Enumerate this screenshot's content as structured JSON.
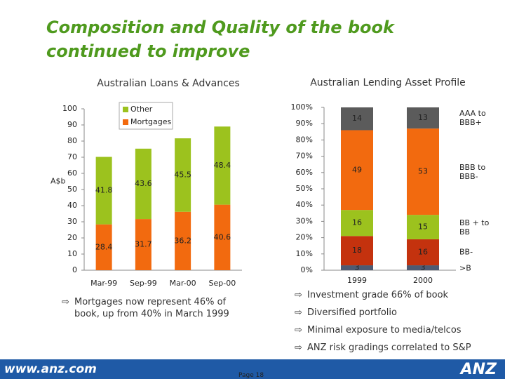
{
  "title": "Composition and Quality of the book continued to improve",
  "chart_data": [
    {
      "type": "bar",
      "stacked": true,
      "title": "Australian Loans & Advances",
      "y_label": "A$b",
      "categories": [
        "Mar-99",
        "Sep-99",
        "Mar-00",
        "Sep-00"
      ],
      "series": [
        {
          "name": "Mortgages",
          "color": "#f26a0f",
          "values": [
            28.4,
            31.7,
            36.2,
            40.6
          ]
        },
        {
          "name": "Other",
          "color": "#9cc21e",
          "values": [
            41.8,
            43.6,
            45.5,
            48.4
          ]
        }
      ],
      "ylim": [
        0,
        100
      ],
      "yticks": [
        0,
        10,
        20,
        30,
        40,
        50,
        60,
        70,
        80,
        90,
        100
      ],
      "legend": "top-left"
    },
    {
      "type": "bar",
      "stacked": true,
      "title": "Australian Lending Asset  Profile",
      "categories": [
        "1999",
        "2000"
      ],
      "series": [
        {
          "name": ">B",
          "color": "#4e5a72",
          "values": [
            3,
            3
          ]
        },
        {
          "name": "BB-",
          "color": "#c4320e",
          "values": [
            18,
            16
          ]
        },
        {
          "name": "BB + to BB",
          "color": "#9cc21e",
          "values": [
            16,
            15
          ]
        },
        {
          "name": "BBB to BBB-",
          "color": "#f26a0f",
          "values": [
            49,
            53
          ]
        },
        {
          "name": "AAA to BBB+",
          "color": "#5b5b5b",
          "values": [
            14,
            13
          ]
        }
      ],
      "ylim": [
        0,
        100
      ],
      "yticks": [
        {
          "value": 0,
          "label": "0%"
        },
        {
          "value": 10,
          "label": "10%"
        },
        {
          "value": 20,
          "label": "20%"
        },
        {
          "value": 30,
          "label": "30%"
        },
        {
          "value": 40,
          "label": "40%"
        },
        {
          "value": 50,
          "label": "50%"
        },
        {
          "value": 60,
          "label": "60%"
        },
        {
          "value": 70,
          "label": "70%"
        },
        {
          "value": 80,
          "label": "80%"
        },
        {
          "value": 90,
          "label": "90%"
        },
        {
          "value": 100,
          "label": "100%"
        }
      ],
      "legend": "right"
    }
  ],
  "left_bullets": [
    "Mortgages now represent 46% of book, up from 40% in March 1999"
  ],
  "right_bullets": [
    "Investment grade 66% of book",
    "Diversified portfolio",
    "Minimal exposure to media/telcos",
    "ANZ risk gradings correlated to S&P"
  ],
  "page": "Page 18",
  "footer": {
    "url": "www.anz.com",
    "logo": "ANZ"
  }
}
